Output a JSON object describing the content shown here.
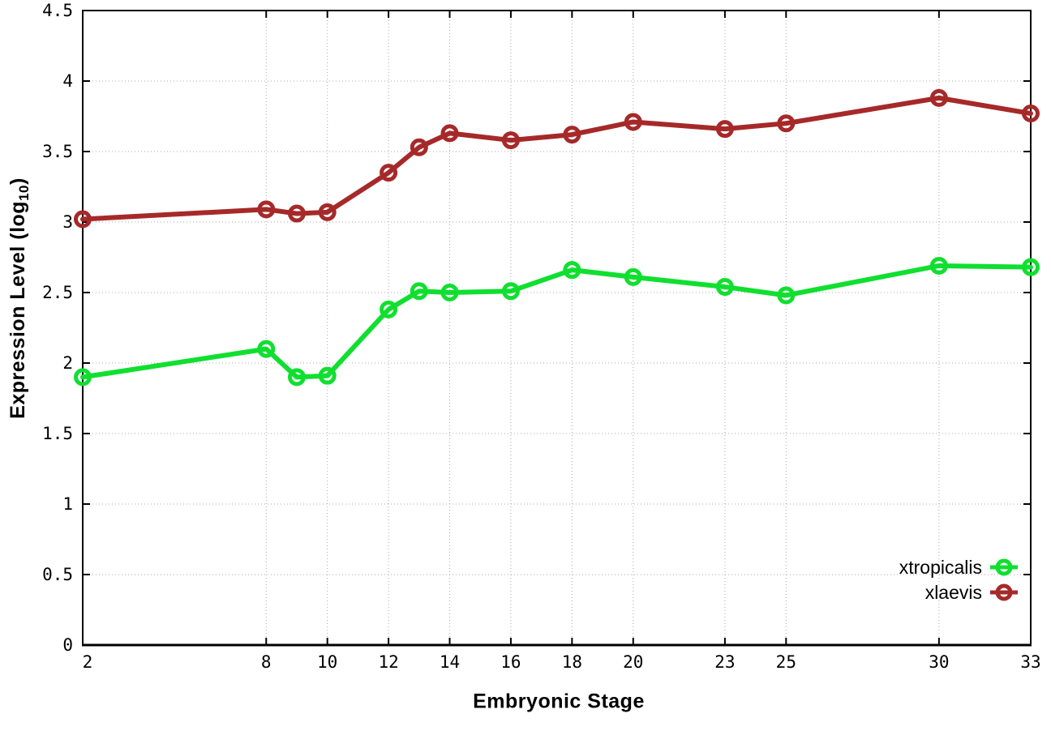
{
  "chart_data": {
    "type": "line",
    "title": "",
    "xlabel": "Embryonic Stage",
    "ylabel": {
      "pre": "Expression Level (log",
      "sub": "10",
      "post": ")"
    },
    "x": [
      2,
      8,
      9,
      10,
      12,
      13,
      14,
      16,
      18,
      20,
      23,
      25,
      30,
      33
    ],
    "xlim": [
      2,
      33
    ],
    "ylim": [
      0,
      4.5
    ],
    "xticks": {
      "values": [
        2,
        8,
        10,
        12,
        14,
        16,
        18,
        20,
        23,
        25,
        30,
        33
      ],
      "labels": [
        "2",
        "8",
        "10",
        "12",
        "14",
        "16",
        "18",
        "20",
        "23",
        "25",
        "30",
        "33"
      ]
    },
    "yticks": {
      "values": [
        0,
        0.5,
        1,
        1.5,
        2,
        2.5,
        3,
        3.5,
        4,
        4.5
      ],
      "labels": [
        "0",
        "0.5",
        "1",
        "1.5",
        "2",
        "2.5",
        "3",
        "3.5",
        "4",
        "4.5"
      ]
    },
    "grid": true,
    "legend_position": "bottom-right",
    "series": [
      {
        "name": "xtropicalis",
        "color": "#10df30",
        "values": [
          1.9,
          2.1,
          1.9,
          1.91,
          2.38,
          2.51,
          2.5,
          2.51,
          2.66,
          2.61,
          2.54,
          2.48,
          2.69,
          2.68
        ]
      },
      {
        "name": "xlaevis",
        "color": "#a62929",
        "values": [
          3.02,
          3.09,
          3.06,
          3.07,
          3.35,
          3.53,
          3.63,
          3.58,
          3.62,
          3.71,
          3.66,
          3.7,
          3.88,
          3.77
        ]
      }
    ],
    "colors": {
      "axis": "#000000",
      "grid": "#a8a8a8",
      "background": "#ffffff"
    }
  }
}
